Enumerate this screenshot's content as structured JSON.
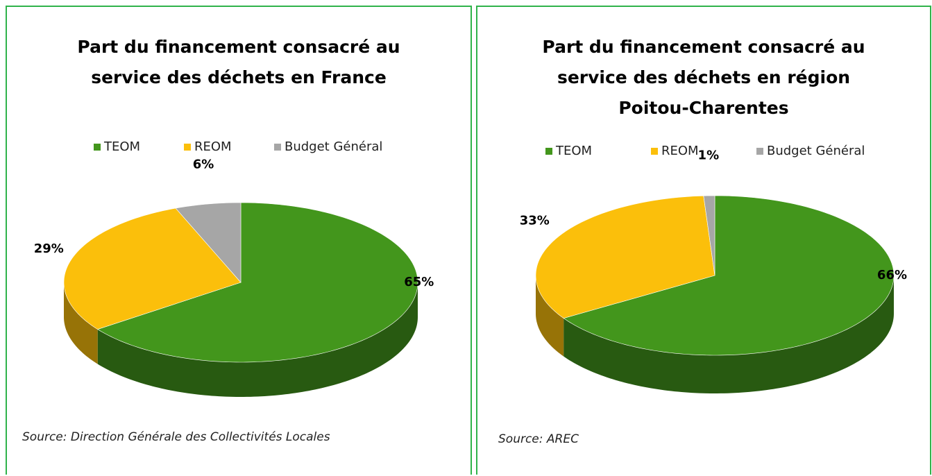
{
  "chart_data": [
    {
      "type": "pie",
      "title": "Part du financement consacré au service des déchets en France",
      "categories": [
        "TEOM",
        "REOM",
        "Budget Général"
      ],
      "colors": [
        "#43961c",
        "#fbbf0b",
        "#a6a6a6"
      ],
      "values": [
        65,
        29,
        6
      ],
      "value_labels": [
        "65%",
        "29%",
        "6%"
      ],
      "source": "Source: Direction Générale des Collectivités Locales"
    },
    {
      "type": "pie",
      "title": "Part du financement consacré au service des déchets en région Poitou-Charentes",
      "categories": [
        "TEOM",
        "REOM",
        "Budget Général"
      ],
      "colors": [
        "#43961c",
        "#fbbf0b",
        "#a6a6a6"
      ],
      "values": [
        66,
        33,
        1
      ],
      "value_labels": [
        "66%",
        "33%",
        "1%"
      ],
      "source": "Source: AREC"
    }
  ]
}
